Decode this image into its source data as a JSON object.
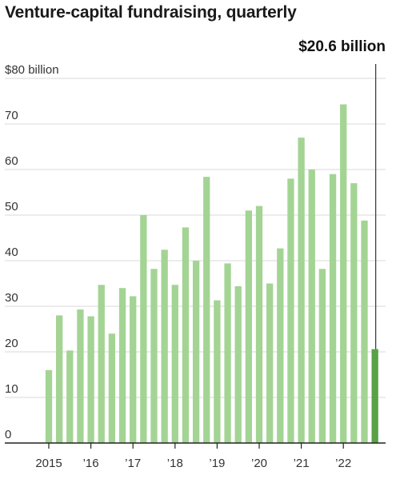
{
  "chart_data": {
    "type": "bar",
    "title": "Venture-capital fundraising, quarterly",
    "ylabel": "",
    "xlabel": "",
    "ylim": [
      0,
      80
    ],
    "y_ticks": [
      {
        "value": 80,
        "label": "$80 billion"
      },
      {
        "value": 70,
        "label": "70"
      },
      {
        "value": 60,
        "label": "60"
      },
      {
        "value": 50,
        "label": "50"
      },
      {
        "value": 40,
        "label": "40"
      },
      {
        "value": 30,
        "label": "30"
      },
      {
        "value": 20,
        "label": "20"
      },
      {
        "value": 10,
        "label": "10"
      },
      {
        "value": 0,
        "label": "0"
      }
    ],
    "x_ticks": [
      {
        "index": 0,
        "label": "2015"
      },
      {
        "index": 4,
        "label": "’16"
      },
      {
        "index": 8,
        "label": "’17"
      },
      {
        "index": 12,
        "label": "’18"
      },
      {
        "index": 16,
        "label": "’19"
      },
      {
        "index": 20,
        "label": "’20"
      },
      {
        "index": 24,
        "label": "’21"
      },
      {
        "index": 28,
        "label": "’22"
      }
    ],
    "categories": [
      "2015 Q1",
      "2015 Q2",
      "2015 Q3",
      "2015 Q4",
      "2016 Q1",
      "2016 Q2",
      "2016 Q3",
      "2016 Q4",
      "2017 Q1",
      "2017 Q2",
      "2017 Q3",
      "2017 Q4",
      "2018 Q1",
      "2018 Q2",
      "2018 Q3",
      "2018 Q4",
      "2019 Q1",
      "2019 Q2",
      "2019 Q3",
      "2019 Q4",
      "2020 Q1",
      "2020 Q2",
      "2020 Q3",
      "2020 Q4",
      "2021 Q1",
      "2021 Q2",
      "2021 Q3",
      "2021 Q4",
      "2022 Q1",
      "2022 Q2",
      "2022 Q3",
      "2022 Q4"
    ],
    "values": [
      16.0,
      28.0,
      20.3,
      29.3,
      27.8,
      34.7,
      24.0,
      34.0,
      32.2,
      50.0,
      38.2,
      42.4,
      34.7,
      47.3,
      40.0,
      58.4,
      31.3,
      39.4,
      34.4,
      51.0,
      52.0,
      35.0,
      42.7,
      58.0,
      67.0,
      60.0,
      38.2,
      59.0,
      74.3,
      57.0,
      48.8,
      20.6
    ],
    "annotation": {
      "label": "$20.6 billion",
      "index": 31
    },
    "grid": true,
    "colors": {
      "bar": "#a3d494",
      "highlight": "#5aa146",
      "grid": "#d9d9d9",
      "axis": "#222222",
      "annotation_line": "#333333"
    }
  }
}
